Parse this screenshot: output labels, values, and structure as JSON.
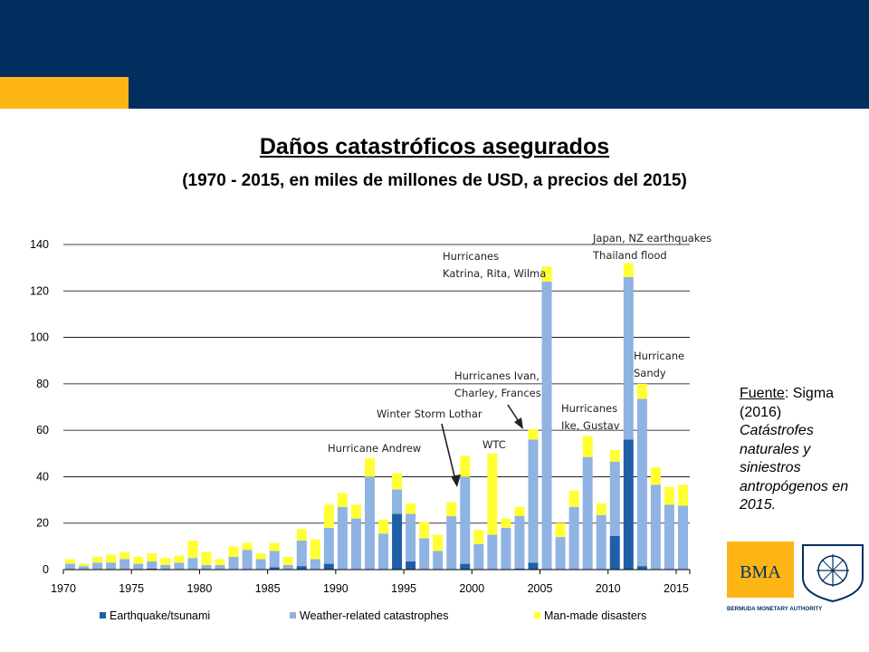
{
  "title": "Daños catastróficos asegurados",
  "subtitle": "(1970 - 2015, en miles de millones de USD, a precios del 2015)",
  "source": {
    "label": "Fuente",
    "text": ": Sigma (2016)",
    "publication": "Catástrofes naturales y siniestros antropógenos en 2015."
  },
  "logo": {
    "text": "BMA",
    "caption": "BERMUDA MONETARY AUTHORITY"
  },
  "colors": {
    "band": "#002f5f",
    "accent": "#fdb515",
    "earthquake": "#1f5fa8",
    "weather": "#8fb3e2",
    "manmade": "#ffff33"
  },
  "chart_data": {
    "type": "bar",
    "stacked": true,
    "x": [
      1970,
      1971,
      1972,
      1973,
      1974,
      1975,
      1976,
      1977,
      1978,
      1979,
      1980,
      1981,
      1982,
      1983,
      1984,
      1985,
      1986,
      1987,
      1988,
      1989,
      1990,
      1991,
      1992,
      1993,
      1994,
      1995,
      1996,
      1997,
      1998,
      1999,
      2000,
      2001,
      2002,
      2003,
      2004,
      2005,
      2006,
      2007,
      2008,
      2009,
      2010,
      2011,
      2012,
      2013,
      2014,
      2015
    ],
    "x_ticks": [
      1970,
      1975,
      1980,
      1985,
      1990,
      1995,
      2000,
      2005,
      2010,
      2015
    ],
    "ylim": [
      0,
      140
    ],
    "y_ticks": [
      0,
      20,
      40,
      60,
      80,
      100,
      120,
      140
    ],
    "grid": true,
    "legend": "bottom",
    "series": [
      {
        "name": "Earthquake/tsunami",
        "values": [
          0,
          0,
          0,
          0,
          0,
          0,
          0.5,
          0,
          0,
          0,
          0,
          0,
          0,
          0,
          0,
          1,
          0,
          1.5,
          0,
          2.5,
          0,
          0,
          0,
          0,
          24,
          3.5,
          0,
          0,
          0,
          2.5,
          0,
          0,
          0,
          0.5,
          3,
          0,
          0,
          0,
          0,
          0,
          14.5,
          56,
          1.5,
          0,
          0,
          0
        ]
      },
      {
        "name": "Weather-related catastrophes",
        "values": [
          2.5,
          1.5,
          3,
          3,
          4.5,
          2.5,
          3,
          2,
          3,
          5,
          2,
          2,
          5.5,
          8.5,
          4.5,
          7,
          2,
          11,
          4.5,
          15.5,
          27,
          22,
          40,
          15.5,
          10.5,
          20.5,
          13.5,
          8,
          23,
          37.5,
          11,
          15,
          18,
          22.5,
          53,
          124,
          14,
          27,
          48.5,
          23.5,
          32,
          70,
          72,
          36.5,
          28,
          27.5
        ]
      },
      {
        "name": "Man-made disasters",
        "values": [
          2,
          1,
          2.5,
          3.5,
          3,
          3,
          3.5,
          3,
          3,
          7.5,
          5.5,
          2.5,
          4.5,
          3,
          2.5,
          3.5,
          3.5,
          5,
          8.5,
          10,
          6,
          6,
          8,
          6,
          7,
          4.5,
          7,
          7,
          6,
          9,
          6,
          35,
          4,
          4,
          4.5,
          6.5,
          6,
          7,
          9,
          5,
          5,
          6,
          6.5,
          7.5,
          7.5,
          9
        ]
      }
    ],
    "annotations": [
      {
        "text": "Hurricane Andrew",
        "year": 1992
      },
      {
        "text": "Winter Storm Lothar",
        "year": 1999
      },
      {
        "text": "WTC",
        "year": 2001
      },
      {
        "text": "Hurricanes Ivan,",
        "text2": "Charley, Frances",
        "year": 2004
      },
      {
        "text": "Hurricanes",
        "text2": "Katrina, Rita, Wilma",
        "year": 2005
      },
      {
        "text": "Hurricanes",
        "text2": "Ike, Gustav",
        "year": 2008
      },
      {
        "text": "Japan, NZ earthquakes",
        "text2": "Thailand flood",
        "year": 2011
      },
      {
        "text": "Hurricane",
        "text2": "Sandy",
        "year": 2012
      }
    ]
  }
}
